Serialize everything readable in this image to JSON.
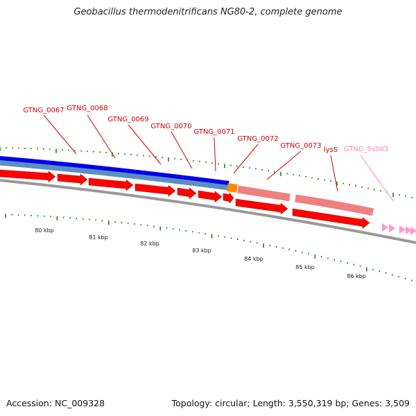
{
  "title": "Geobacillus thermodenitrificans NG80-2, complete genome",
  "footer": {
    "accession": "Accession: NC_009328",
    "summary": "Topology: circular; Length: 3,550,319 bp; Genes: 3,509"
  },
  "colors": {
    "cds_forward": "#ff0000",
    "cds_light": "#f08080",
    "blue_track": "#0000ee",
    "steel_track": "#5b8fc0",
    "orange_block": "#ff8c00",
    "rrna_pink": "#ff99cc",
    "label_red": "#d00000",
    "label_pink": "#ff88bb",
    "tick_green": "#008000",
    "backbone": "#888888"
  },
  "scale_labels": [
    "80 kbp",
    "81 kbp",
    "82 kbp",
    "83 kbp",
    "84 kbp",
    "85 kbp",
    "86 kbp"
  ],
  "genes": [
    {
      "label": "GTNG_0067",
      "color": "red"
    },
    {
      "label": "GTNG_0068",
      "color": "red"
    },
    {
      "label": "GTNG_0069",
      "color": "red"
    },
    {
      "label": "GTNG_0070",
      "color": "red"
    },
    {
      "label": "GTNG_0071",
      "color": "red"
    },
    {
      "label": "GTNG_0072",
      "color": "red"
    },
    {
      "label": "GTNG_0073",
      "color": "red"
    },
    {
      "label": "lysS",
      "color": "red"
    },
    {
      "label": "GTNG_5s003",
      "color": "pink"
    }
  ]
}
